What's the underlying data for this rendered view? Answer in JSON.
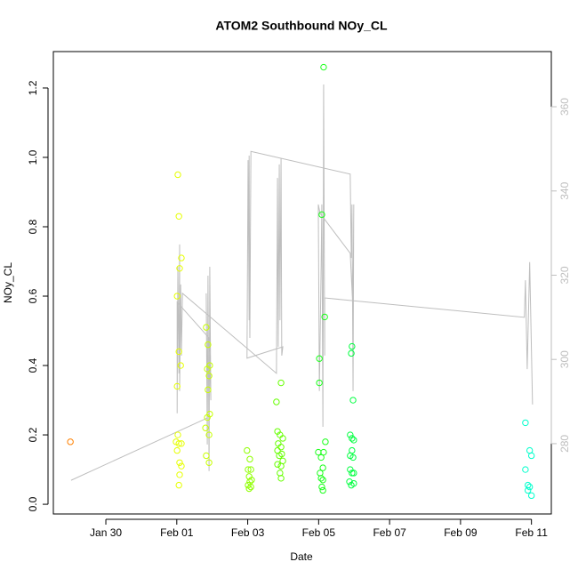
{
  "chart_data": {
    "type": "scatter",
    "title": "ATOM2 Southbound NOy_CL",
    "x_label": "Date",
    "y_label": "NOy_CL",
    "xlim": [
      -1.48,
      12.56
    ],
    "xticks": [
      {
        "value": 0,
        "label": "Jan 30"
      },
      {
        "value": 2,
        "label": "Feb 01"
      },
      {
        "value": 4,
        "label": "Feb 03"
      },
      {
        "value": 6,
        "label": "Feb 05"
      },
      {
        "value": 8,
        "label": "Feb 07"
      },
      {
        "value": 10,
        "label": "Feb 09"
      },
      {
        "value": 12,
        "label": "Feb 11"
      }
    ],
    "ylim": [
      -0.028,
      1.305
    ],
    "yticks": [
      {
        "value": 0,
        "label": "0.0"
      },
      0.2,
      0.4,
      0.6,
      0.8,
      {
        "value": 1,
        "label": "1.0"
      },
      1.2
    ],
    "y2lim": [
      263.3,
      373.1
    ],
    "y2ticks": [
      280,
      300,
      320,
      340,
      360
    ],
    "y2_color": "#bebebe",
    "series": [
      {
        "type": "line",
        "axis": "y2",
        "color": "#bebebe",
        "x": [
          -0.98,
          2.86,
          2.83,
          2.86,
          2.88,
          2.91,
          2.93,
          2.96,
          2.91,
          2.01,
          2.01,
          2.03,
          2.06,
          2.08,
          2.08,
          2.11,
          2.13,
          2.16,
          4.81,
          4.84,
          4.86,
          4.89,
          4.91,
          4.94,
          4.96,
          4.99,
          3.98,
          4.01,
          4.04,
          4.04,
          4.06,
          4.09,
          6.89,
          6.92,
          6.94,
          6.97,
          6.99,
          6.97,
          6.89,
          6.04,
          5.99,
          6.02,
          6.07,
          6.09,
          6.12,
          6.14,
          6.17,
          6.17,
          11.8,
          11.83,
          11.88,
          11.95,
          12.03
        ],
        "values": [
          271.3,
          286.1,
          315.7,
          279.8,
          319.9,
          273.5,
          322.0,
          290.3,
          305.1,
          313.6,
          287.2,
          322.0,
          296.7,
          327.3,
          292.5,
          317.8,
          300.9,
          315.7,
          296.7,
          343.1,
          303.0,
          346.3,
          309.3,
          347.8,
          300.9,
          303.0,
          300.3,
          347.3,
          309.3,
          348.4,
          305.1,
          349.4,
          344.0,
          324.1,
          336.8,
          292.5,
          336.8,
          311.5,
          325.2,
          334.7,
          336.8,
          292.5,
          322.0,
          336.8,
          284.0,
          365.3,
          300.9,
          314.6,
          310.0,
          318.8,
          297.7,
          323.1,
          289.3
        ]
      },
      {
        "color": "#ff8000",
        "x": [
          -1.0
        ],
        "values": [
          0.18
        ]
      },
      {
        "color": "#e6ff00",
        "x": [
          2.03,
          2.06,
          2.13,
          2.08,
          2.01,
          2.06,
          2.11,
          2.01,
          2.03,
          1.98,
          2.06,
          2.13,
          2.01,
          2.08,
          2.13,
          2.08,
          2.06
        ],
        "values": [
          0.95,
          0.83,
          0.71,
          0.68,
          0.6,
          0.44,
          0.4,
          0.34,
          0.2,
          0.18,
          0.175,
          0.175,
          0.155,
          0.12,
          0.11,
          0.085,
          0.055
        ]
      },
      {
        "color": "#c8ff00",
        "x": [
          2.83,
          2.88,
          2.86,
          2.93,
          2.91,
          2.88,
          2.93,
          2.86,
          2.81,
          2.91,
          2.83,
          2.91
        ],
        "values": [
          0.51,
          0.46,
          0.39,
          0.4,
          0.37,
          0.33,
          0.26,
          0.25,
          0.22,
          0.2,
          0.14,
          0.12
        ]
      },
      {
        "color": "#8fff00",
        "x": [
          3.98,
          4.01,
          4.09,
          4.04,
          4.06,
          4.01,
          4.09,
          4.04,
          4.11,
          4.06
        ],
        "values": [
          0.155,
          0.1,
          0.1,
          0.08,
          0.065,
          0.055,
          0.05,
          0.045,
          0.07,
          0.13
        ]
      },
      {
        "color": "#66ff00",
        "x": [
          4.94,
          4.81,
          4.84,
          4.91,
          4.99,
          4.86,
          4.94,
          4.84,
          4.96,
          4.89,
          4.99,
          4.84,
          4.94,
          4.91,
          4.94
        ],
        "values": [
          0.35,
          0.295,
          0.21,
          0.2,
          0.19,
          0.175,
          0.165,
          0.155,
          0.145,
          0.14,
          0.125,
          0.115,
          0.11,
          0.09,
          0.075
        ]
      },
      {
        "color": "#1aff1a",
        "x": [
          6.14,
          6.09,
          6.02,
          6.02,
          6.17,
          6.19,
          6.14,
          5.99,
          6.07,
          6.12,
          6.04,
          6.07,
          6.12,
          6.09,
          6.12
        ],
        "values": [
          1.26,
          0.835,
          0.42,
          0.35,
          0.54,
          0.18,
          0.15,
          0.15,
          0.135,
          0.105,
          0.09,
          0.075,
          0.07,
          0.05,
          0.04
        ]
      },
      {
        "color": "#00ff40",
        "x": [
          6.94,
          6.92,
          6.97,
          6.89,
          6.94,
          6.99,
          6.94,
          6.89,
          6.97,
          6.89,
          6.94,
          6.99,
          6.87,
          6.92,
          6.99
        ],
        "values": [
          0.455,
          0.435,
          0.3,
          0.2,
          0.19,
          0.185,
          0.155,
          0.14,
          0.135,
          0.1,
          0.09,
          0.09,
          0.065,
          0.055,
          0.06
        ]
      },
      {
        "color": "#00ffcc",
        "x": [
          11.83,
          11.95,
          12.0,
          11.83,
          11.9,
          11.95,
          11.9,
          12.0
        ],
        "values": [
          0.235,
          0.155,
          0.14,
          0.1,
          0.055,
          0.05,
          0.04,
          0.025
        ]
      }
    ]
  }
}
